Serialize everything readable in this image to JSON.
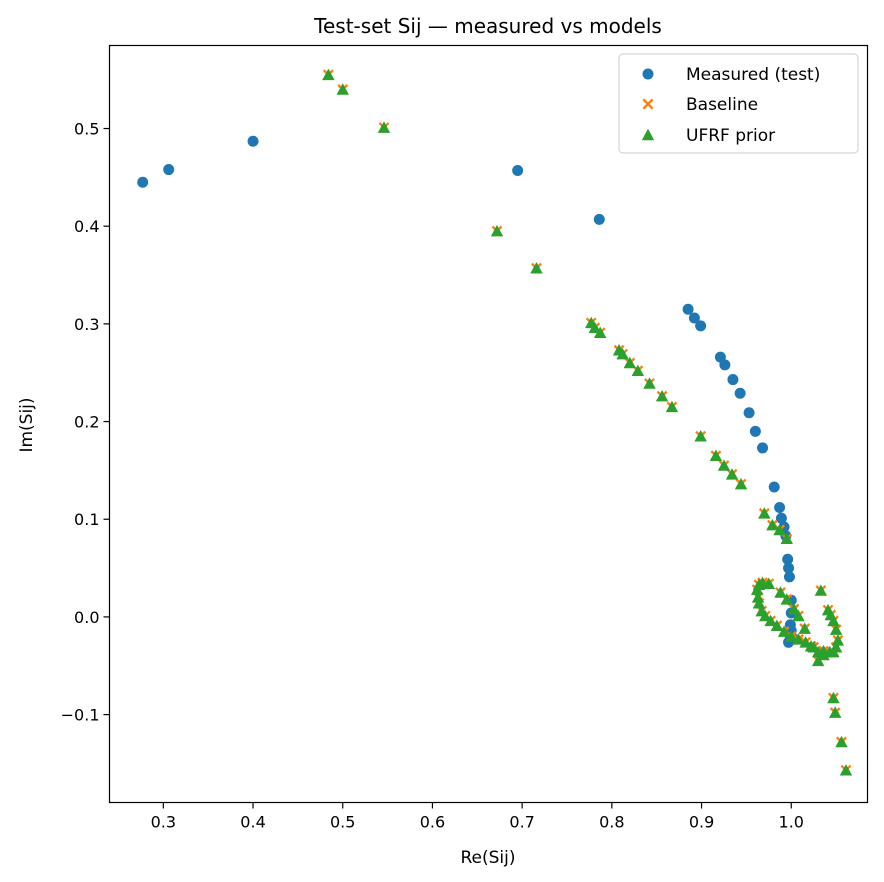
{
  "chart_data": {
    "type": "scatter",
    "title": "Test-set Sij — measured vs models",
    "xlabel": "Re(Sij)",
    "ylabel": "Im(Sij)",
    "xlim": [
      0.24,
      1.085
    ],
    "ylim": [
      -0.19,
      0.585
    ],
    "xticks": [
      0.3,
      0.4,
      0.5,
      0.6,
      0.7,
      0.8,
      0.9,
      1.0
    ],
    "xtick_labels": [
      "0.3",
      "0.4",
      "0.5",
      "0.6",
      "0.7",
      "0.8",
      "0.9",
      "1.0"
    ],
    "yticks": [
      -0.1,
      0.0,
      0.1,
      0.2,
      0.3,
      0.4,
      0.5
    ],
    "ytick_labels": [
      "−0.1",
      "0.0",
      "0.1",
      "0.2",
      "0.3",
      "0.4",
      "0.5"
    ],
    "grid": false,
    "legend_position": "top-right",
    "series": [
      {
        "name": "Measured (test)",
        "marker": "circle",
        "color": "#1f77b4",
        "points": [
          [
            0.277,
            0.445
          ],
          [
            0.306,
            0.458
          ],
          [
            0.4,
            0.487
          ],
          [
            0.695,
            0.457
          ],
          [
            0.786,
            0.407
          ],
          [
            0.885,
            0.315
          ],
          [
            0.892,
            0.306
          ],
          [
            0.899,
            0.298
          ],
          [
            0.921,
            0.266
          ],
          [
            0.926,
            0.258
          ],
          [
            0.935,
            0.243
          ],
          [
            0.943,
            0.229
          ],
          [
            0.953,
            0.209
          ],
          [
            0.96,
            0.19
          ],
          [
            0.968,
            0.173
          ],
          [
            0.981,
            0.133
          ],
          [
            0.987,
            0.112
          ],
          [
            0.989,
            0.101
          ],
          [
            0.992,
            0.092
          ],
          [
            0.994,
            0.083
          ],
          [
            0.996,
            0.059
          ],
          [
            0.997,
            0.05
          ],
          [
            0.998,
            0.041
          ],
          [
            1.0,
            0.017
          ],
          [
            1.0,
            0.004
          ],
          [
            0.999,
            -0.008
          ],
          [
            0.998,
            -0.018
          ],
          [
            0.997,
            -0.026
          ],
          [
            1.002,
            -0.022
          ],
          [
            1.0,
            -0.014
          ]
        ]
      },
      {
        "name": "Baseline",
        "marker": "x",
        "color": "#ff7f0e",
        "points": [
          [
            0.484,
            0.555
          ],
          [
            0.5,
            0.54
          ],
          [
            0.546,
            0.501
          ],
          [
            0.672,
            0.395
          ],
          [
            0.716,
            0.357
          ],
          [
            0.777,
            0.301
          ],
          [
            0.781,
            0.296
          ],
          [
            0.787,
            0.291
          ],
          [
            0.808,
            0.273
          ],
          [
            0.812,
            0.269
          ],
          [
            0.82,
            0.26
          ],
          [
            0.829,
            0.252
          ],
          [
            0.842,
            0.239
          ],
          [
            0.856,
            0.226
          ],
          [
            0.867,
            0.215
          ],
          [
            0.899,
            0.185
          ],
          [
            0.916,
            0.165
          ],
          [
            0.925,
            0.155
          ],
          [
            0.934,
            0.146
          ],
          [
            0.944,
            0.136
          ],
          [
            0.97,
            0.106
          ],
          [
            0.979,
            0.094
          ],
          [
            0.987,
            0.089
          ],
          [
            0.995,
            0.08
          ],
          [
            0.964,
            0.033
          ],
          [
            0.968,
            0.035
          ],
          [
            0.975,
            0.034
          ],
          [
            0.988,
            0.025
          ],
          [
            0.995,
            0.018
          ],
          [
            1.003,
            0.008
          ],
          [
            1.008,
            0.001
          ],
          [
            1.015,
            -0.012
          ],
          [
            1.022,
            -0.03
          ],
          [
            1.03,
            -0.036
          ],
          [
            1.036,
            -0.039
          ],
          [
            1.043,
            -0.036
          ],
          [
            1.05,
            -0.031
          ],
          [
            1.052,
            -0.024
          ],
          [
            1.05,
            -0.013
          ],
          [
            1.047,
            -0.004
          ],
          [
            1.044,
            0.002
          ],
          [
            1.041,
            0.007
          ],
          [
            1.033,
            0.027
          ],
          [
            1.03,
            -0.045
          ],
          [
            1.047,
            -0.083
          ],
          [
            1.049,
            -0.098
          ],
          [
            1.056,
            -0.128
          ],
          [
            1.061,
            -0.157
          ],
          [
            0.962,
            0.028
          ],
          [
            0.963,
            0.02
          ],
          [
            0.964,
            0.014
          ],
          [
            0.967,
            0.006
          ],
          [
            0.971,
            0.001
          ],
          [
            0.977,
            -0.004
          ],
          [
            0.984,
            -0.009
          ],
          [
            0.992,
            -0.015
          ],
          [
            1.0,
            -0.02
          ],
          [
            1.008,
            -0.023
          ],
          [
            1.016,
            -0.026
          ],
          [
            1.025,
            -0.031
          ],
          [
            1.036,
            -0.035
          ],
          [
            1.047,
            -0.036
          ]
        ]
      },
      {
        "name": "UFRF prior",
        "marker": "triangle",
        "color": "#2ca02c",
        "points": [
          [
            0.484,
            0.555
          ],
          [
            0.5,
            0.54
          ],
          [
            0.546,
            0.501
          ],
          [
            0.672,
            0.395
          ],
          [
            0.716,
            0.357
          ],
          [
            0.777,
            0.301
          ],
          [
            0.781,
            0.296
          ],
          [
            0.787,
            0.291
          ],
          [
            0.808,
            0.273
          ],
          [
            0.812,
            0.269
          ],
          [
            0.82,
            0.26
          ],
          [
            0.829,
            0.252
          ],
          [
            0.842,
            0.239
          ],
          [
            0.856,
            0.226
          ],
          [
            0.867,
            0.215
          ],
          [
            0.899,
            0.185
          ],
          [
            0.916,
            0.165
          ],
          [
            0.925,
            0.155
          ],
          [
            0.934,
            0.146
          ],
          [
            0.944,
            0.136
          ],
          [
            0.97,
            0.106
          ],
          [
            0.979,
            0.094
          ],
          [
            0.987,
            0.089
          ],
          [
            0.995,
            0.08
          ],
          [
            0.964,
            0.033
          ],
          [
            0.968,
            0.035
          ],
          [
            0.975,
            0.034
          ],
          [
            0.988,
            0.025
          ],
          [
            0.995,
            0.018
          ],
          [
            1.003,
            0.008
          ],
          [
            1.008,
            0.001
          ],
          [
            1.015,
            -0.012
          ],
          [
            1.022,
            -0.03
          ],
          [
            1.03,
            -0.036
          ],
          [
            1.036,
            -0.039
          ],
          [
            1.043,
            -0.036
          ],
          [
            1.05,
            -0.031
          ],
          [
            1.052,
            -0.024
          ],
          [
            1.05,
            -0.013
          ],
          [
            1.047,
            -0.004
          ],
          [
            1.044,
            0.002
          ],
          [
            1.041,
            0.007
          ],
          [
            1.033,
            0.027
          ],
          [
            1.03,
            -0.045
          ],
          [
            1.047,
            -0.083
          ],
          [
            1.049,
            -0.098
          ],
          [
            1.056,
            -0.128
          ],
          [
            1.061,
            -0.157
          ],
          [
            0.962,
            0.028
          ],
          [
            0.963,
            0.02
          ],
          [
            0.964,
            0.014
          ],
          [
            0.967,
            0.006
          ],
          [
            0.971,
            0.001
          ],
          [
            0.977,
            -0.004
          ],
          [
            0.984,
            -0.009
          ],
          [
            0.992,
            -0.015
          ],
          [
            1.0,
            -0.02
          ],
          [
            1.008,
            -0.023
          ],
          [
            1.016,
            -0.026
          ],
          [
            1.025,
            -0.031
          ],
          [
            1.036,
            -0.035
          ],
          [
            1.047,
            -0.036
          ]
        ]
      }
    ]
  }
}
